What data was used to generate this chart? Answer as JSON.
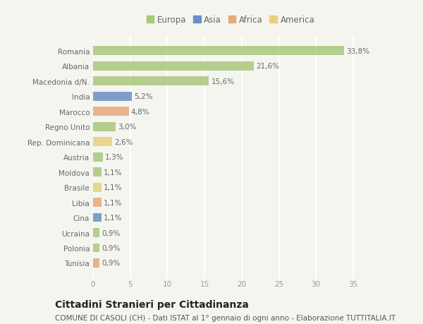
{
  "categories": [
    "Tunisia",
    "Polonia",
    "Ucraina",
    "Cina",
    "Libia",
    "Brasile",
    "Moldova",
    "Austria",
    "Rep. Dominicana",
    "Regno Unito",
    "Marocco",
    "India",
    "Macedonia d/N.",
    "Albania",
    "Romania"
  ],
  "values": [
    0.9,
    0.9,
    0.9,
    1.1,
    1.1,
    1.1,
    1.1,
    1.3,
    2.6,
    3.0,
    4.8,
    5.2,
    15.6,
    21.6,
    33.8
  ],
  "continents": [
    "Africa",
    "Europa",
    "Europa",
    "Asia",
    "Africa",
    "America",
    "Europa",
    "Europa",
    "America",
    "Europa",
    "Africa",
    "Asia",
    "Europa",
    "Europa",
    "Europa"
  ],
  "labels": [
    "0,9%",
    "0,9%",
    "0,9%",
    "1,1%",
    "1,1%",
    "1,1%",
    "1,1%",
    "1,3%",
    "2,6%",
    "3,0%",
    "4,8%",
    "5,2%",
    "15,6%",
    "21,6%",
    "33,8%"
  ],
  "colors": {
    "Europa": "#a8c87c",
    "Asia": "#6b8ec4",
    "Africa": "#e8a87c",
    "America": "#e8d07c"
  },
  "legend_order": [
    "Europa",
    "Asia",
    "Africa",
    "America"
  ],
  "legend_colors": [
    "#a8c87c",
    "#6b8ec4",
    "#e8a87c",
    "#e8d07c"
  ],
  "xlim": [
    0,
    37
  ],
  "xticks": [
    0,
    5,
    10,
    15,
    20,
    25,
    30,
    35
  ],
  "title": "Cittadini Stranieri per Cittadinanza",
  "subtitle": "COMUNE DI CASOLI (CH) - Dati ISTAT al 1° gennaio di ogni anno - Elaborazione TUTTITALIA.IT",
  "background_color": "#f5f5f0",
  "grid_color": "#ffffff",
  "bar_height": 0.6,
  "title_fontsize": 10,
  "subtitle_fontsize": 7.5,
  "label_fontsize": 7.5,
  "tick_fontsize": 7.5,
  "legend_fontsize": 8.5
}
